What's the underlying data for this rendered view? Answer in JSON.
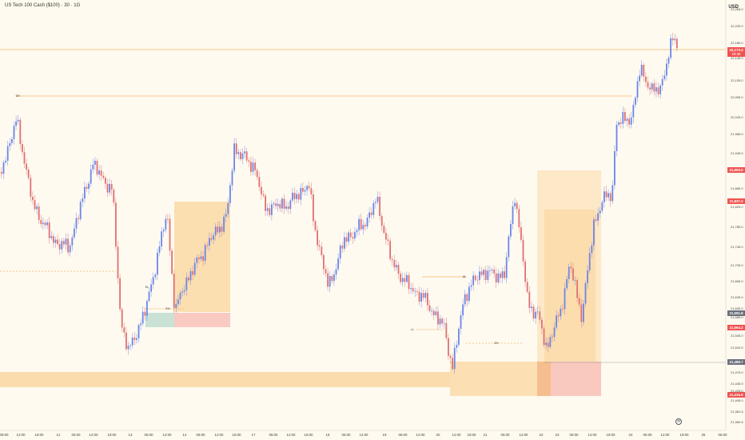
{
  "header": {
    "title": "US Tech 100 Cash ($100) · 30 · 1G",
    "currency": "USD"
  },
  "colors": {
    "background": "#fefaf0",
    "candle_up": "#6b85e8",
    "candle_down": "#e07070",
    "level_line": "#f2b560",
    "zone_orange": "#fbd9a5",
    "zone_teal": "#c3dfd1",
    "zone_pink": "#f8c4bc",
    "badge_red": "#ef5350",
    "badge_gray": "#6b6f7b"
  },
  "price_axis": {
    "labels": [
      "22,265.0",
      "22,225.0",
      "22,185.0",
      "22,145.0",
      "22,105.0",
      "22,065.0",
      "22,025.0",
      "21,985.0",
      "21,945.0",
      "21,905.0",
      "21,865.0",
      "21,825.0",
      "21,785.0",
      "21,745.0",
      "21,705.0",
      "21,665.0",
      "21,625.0",
      "21,605.0",
      "21,585.0",
      "21,545.0",
      "21,520.0",
      "21,495.0",
      "21,475.0",
      "21,445.0",
      "21,425.0",
      "21,405.0",
      "21,381.5",
      "21,360.5"
    ]
  },
  "price_badges": [
    {
      "value": "22,173.4",
      "sub": "29:39",
      "color": "#ef5350"
    },
    {
      "value": "21,906.0",
      "sub": "",
      "color": "#ef5350"
    },
    {
      "value": "21,837.2",
      "sub": "",
      "color": "#ef5350"
    },
    {
      "value": "21,591.8",
      "sub": "",
      "color": "#6b6f7b"
    },
    {
      "value": "21,564.2",
      "sub": "",
      "color": "#ef5350"
    },
    {
      "value": "21,489.7",
      "sub": "",
      "color": "#6b6f7b"
    },
    {
      "value": "21,416.9",
      "sub": "",
      "color": "#ef5350"
    }
  ],
  "time_axis": {
    "labels": [
      "09:00",
      "12:00",
      "18:00",
      "12",
      "06:00",
      "12:00",
      "18:00",
      "13",
      "06:00",
      "12:00",
      "14",
      "06:00",
      "12:00",
      "18:00",
      "17",
      "06:00",
      "12:00",
      "18:00",
      "18",
      "06:00",
      "12:00",
      "19",
      "06:00",
      "12:00",
      "20",
      "12:00",
      "18:00",
      "21",
      "06:00",
      "12:00",
      "22",
      "23",
      "06:00",
      "12:00",
      "18:00",
      "24",
      "06:00",
      "12:00",
      "18:00",
      "25",
      "06:00"
    ]
  },
  "annotations": [
    "SH",
    "UL",
    "EH",
    "EL",
    "EH",
    "LL"
  ],
  "controls": {
    "reset_label": "⟲"
  },
  "chart_data": {
    "type": "candlestick",
    "title": "US Tech 100 Cash ($100) · 30 · 1G",
    "y_unit": "USD",
    "ylim": [
      21360.5,
      22265
    ],
    "grid": false,
    "approx_close_path": [
      {
        "time": "11 09:00",
        "price": 21940
      },
      {
        "time": "11 12:00",
        "price": 22000
      },
      {
        "time": "11 18:00",
        "price": 21800
      },
      {
        "time": "12 00:00",
        "price": 21760
      },
      {
        "time": "12 06:00",
        "price": 21790
      },
      {
        "time": "12 12:00",
        "price": 21930
      },
      {
        "time": "12 18:00",
        "price": 21870
      },
      {
        "time": "13 00:00",
        "price": 21470
      },
      {
        "time": "13 06:00",
        "price": 21580
      },
      {
        "time": "13 12:00",
        "price": 21730
      },
      {
        "time": "14 00:00",
        "price": 21640
      },
      {
        "time": "14 06:00",
        "price": 21700
      },
      {
        "time": "14 12:00",
        "price": 21820
      },
      {
        "time": "14 18:00",
        "price": 21960
      },
      {
        "time": "17 00:00",
        "price": 21880
      },
      {
        "time": "17 06:00",
        "price": 21840
      },
      {
        "time": "17 12:00",
        "price": 21880
      },
      {
        "time": "18 00:00",
        "price": 21700
      },
      {
        "time": "18 06:00",
        "price": 21650
      },
      {
        "time": "18 12:00",
        "price": 21780
      },
      {
        "time": "18 18:00",
        "price": 21740
      },
      {
        "time": "19 00:00",
        "price": 21620
      },
      {
        "time": "19 06:00",
        "price": 21600
      },
      {
        "time": "20 00:00",
        "price": 21470
      },
      {
        "time": "20 06:00",
        "price": 21650
      },
      {
        "time": "20 12:00",
        "price": 21660
      },
      {
        "time": "21 00:00",
        "price": 21840
      },
      {
        "time": "21 06:00",
        "price": 21600
      },
      {
        "time": "22 00:00",
        "price": 21500
      },
      {
        "time": "22 12:00",
        "price": 21700
      },
      {
        "time": "22 18:00",
        "price": 21560
      },
      {
        "time": "23 00:00",
        "price": 21820
      },
      {
        "time": "23 06:00",
        "price": 21860
      },
      {
        "time": "23 12:00",
        "price": 22020
      },
      {
        "time": "24 00:00",
        "price": 22100
      },
      {
        "time": "24 06:00",
        "price": 22060
      },
      {
        "time": "24 12:00",
        "price": 22190
      },
      {
        "time": "24 15:00",
        "price": 22173.4
      }
    ],
    "levels": [
      22173.4,
      22065,
      21690,
      21660,
      21520
    ]
  }
}
